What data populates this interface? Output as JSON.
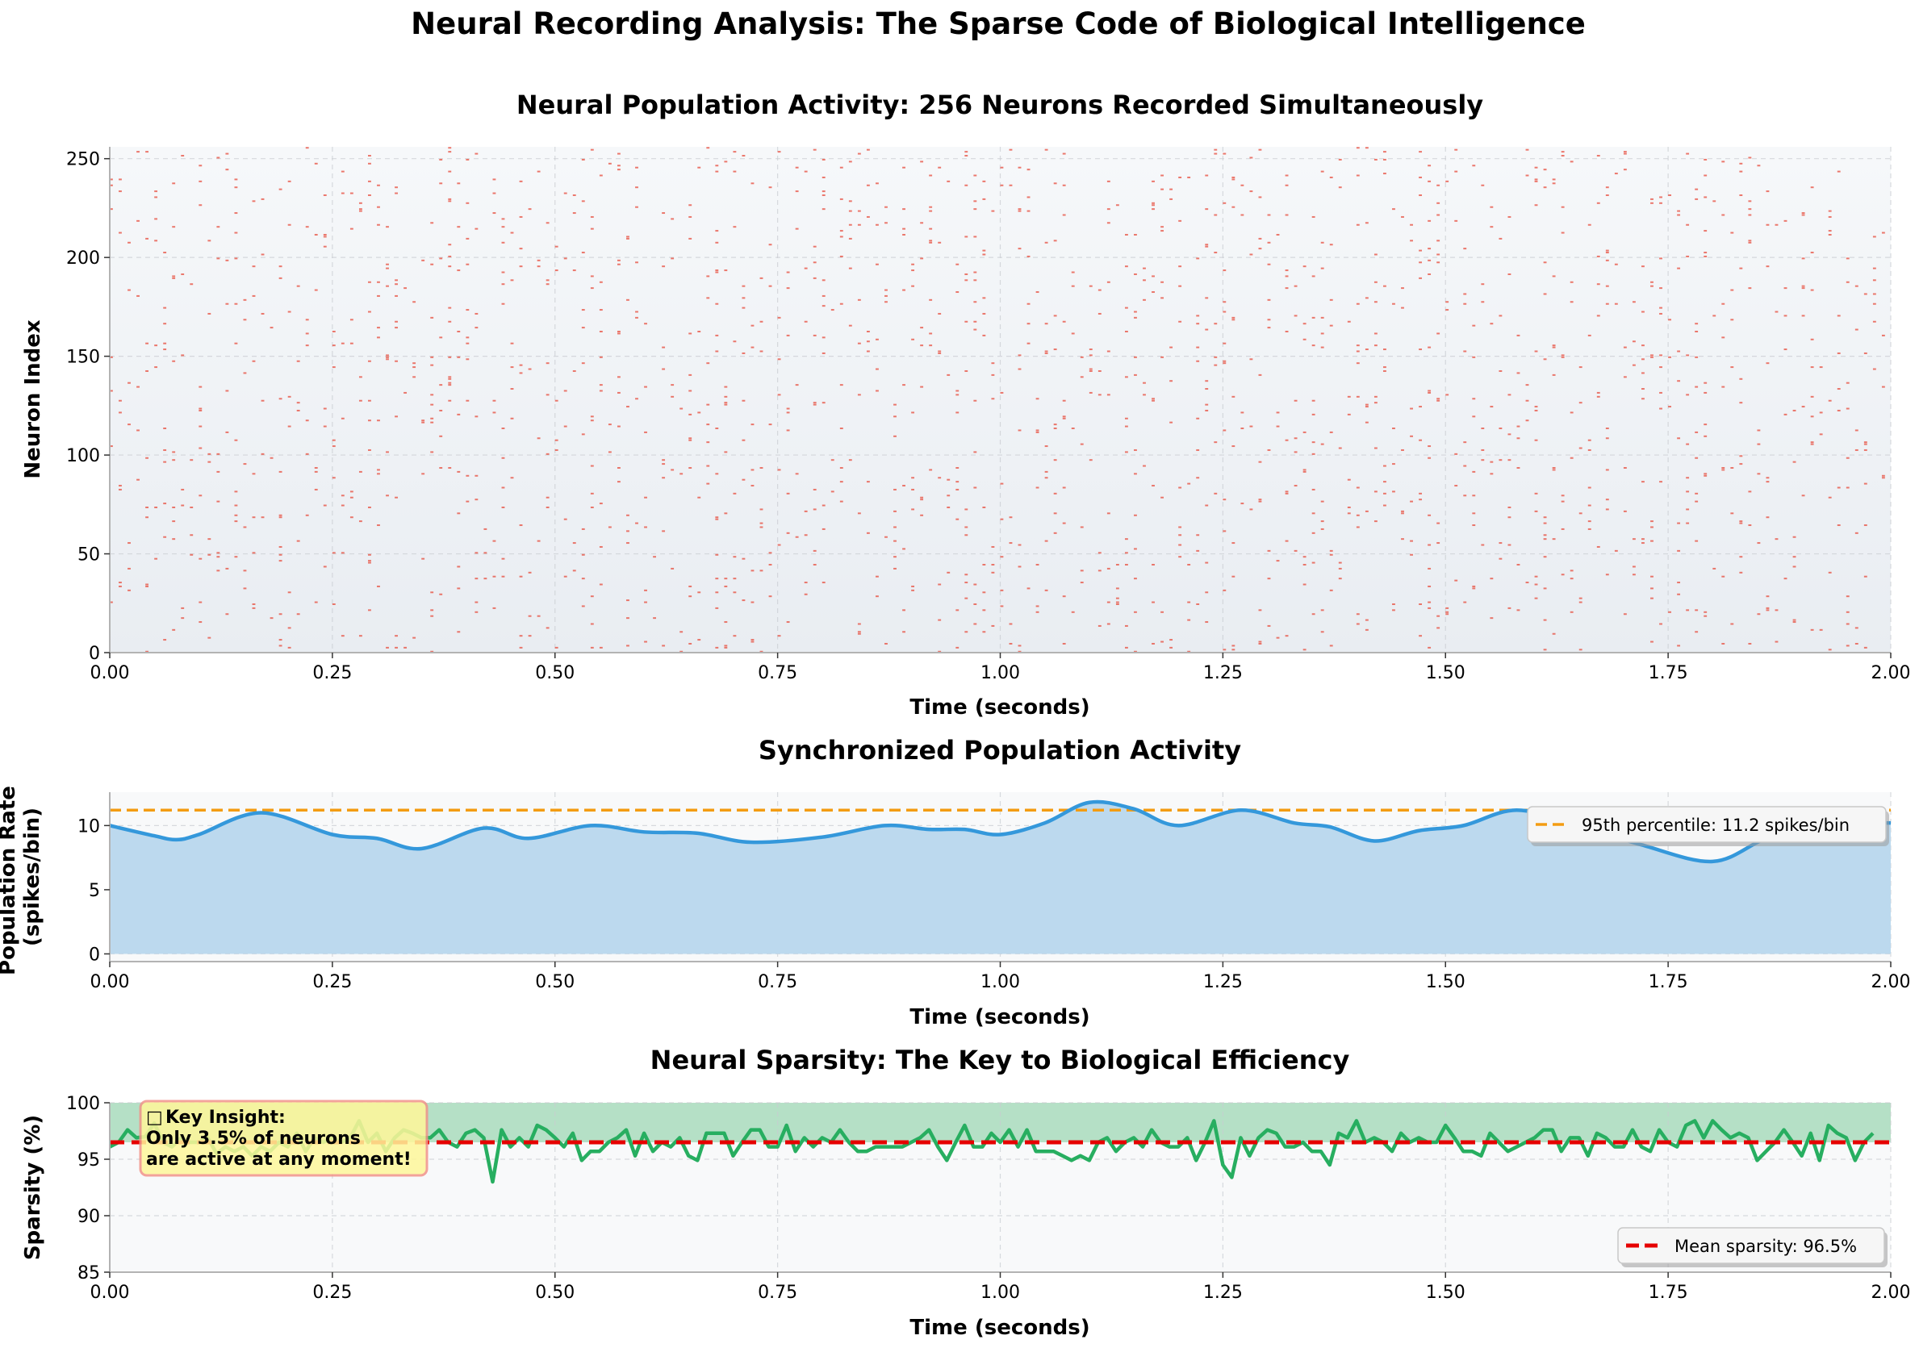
{
  "figure_title": "Neural Recording Analysis: The Sparse Code of Biological Intelligence",
  "colors": {
    "spike": "#e74c3c",
    "rate_line": "#3498db",
    "rate_fill": "#bcd9ee",
    "threshold": "#f39c12",
    "sparsity_line": "#27ae60",
    "sparsity_band": "#b5e0c6",
    "mean_line": "#e60000",
    "annotation_fill": "#fff79a",
    "annotation_border": "#f1948a"
  },
  "chart_data": [
    {
      "type": "scatter",
      "title": "Neural Population Activity: 256 Neurons Recorded Simultaneously",
      "xlabel": "Time (seconds)",
      "ylabel": "Neuron Index",
      "xlim": [
        0,
        2.0
      ],
      "ylim": [
        0,
        256
      ],
      "xticks": [
        "0.00",
        "0.25",
        "0.50",
        "0.75",
        "1.00",
        "1.25",
        "1.50",
        "1.75",
        "2.00"
      ],
      "yticks": [
        "0",
        "50",
        "100",
        "150",
        "200",
        "250"
      ],
      "grid": true,
      "neurons": 256,
      "duration_s": 2.0,
      "spike_probability_per_bin": 0.035,
      "bins": 200
    },
    {
      "type": "area",
      "title": "Synchronized Population Activity",
      "xlabel": "Time (seconds)",
      "ylabel": "Population Rate\n(spikes/bin)",
      "xlim": [
        0,
        2.0
      ],
      "ylim": [
        -0.6,
        12.6
      ],
      "xticks": [
        "0.00",
        "0.25",
        "0.50",
        "0.75",
        "1.00",
        "1.25",
        "1.50",
        "1.75",
        "2.00"
      ],
      "yticks": [
        "0",
        "5",
        "10"
      ],
      "grid": true,
      "x": [
        0,
        0.05,
        0.075,
        0.1,
        0.17,
        0.25,
        0.3,
        0.35,
        0.42,
        0.47,
        0.54,
        0.6,
        0.66,
        0.72,
        0.8,
        0.87,
        0.92,
        0.96,
        1.0,
        1.05,
        1.1,
        1.15,
        1.2,
        1.27,
        1.33,
        1.37,
        1.42,
        1.47,
        1.52,
        1.58,
        1.65,
        1.72,
        1.8,
        1.86,
        1.92,
        2.0
      ],
      "y": [
        10.0,
        9.2,
        8.9,
        9.3,
        11.0,
        9.3,
        9.0,
        8.2,
        9.8,
        9.0,
        10.0,
        9.5,
        9.4,
        8.7,
        9.1,
        10.0,
        9.7,
        9.7,
        9.3,
        10.2,
        11.8,
        11.3,
        10.0,
        11.2,
        10.2,
        9.9,
        8.8,
        9.6,
        10.0,
        11.2,
        10.0,
        8.5,
        7.2,
        9.0,
        10.2,
        10.2
      ],
      "threshold": 11.2,
      "legend": "95th percentile: 11.2 spikes/bin",
      "legend_position": "upper right"
    },
    {
      "type": "line",
      "title": "Neural Sparsity: The Key to Biological Efficiency",
      "xlabel": "Time (seconds)",
      "ylabel": "Sparsity (%)",
      "xlim": [
        0,
        2.0
      ],
      "ylim": [
        85,
        100
      ],
      "xticks": [
        "0.00",
        "0.25",
        "0.50",
        "0.75",
        "1.00",
        "1.25",
        "1.50",
        "1.75",
        "2.00"
      ],
      "yticks": [
        "85",
        "90",
        "95",
        "100"
      ],
      "grid": true,
      "x_start": 0,
      "x_step": 0.01,
      "y": [
        96.1,
        96.5,
        97.6,
        96.9,
        97.0,
        98.2,
        96.5,
        96.1,
        96.9,
        96.5,
        96.5,
        96.9,
        95.5,
        96.1,
        95.7,
        96.1,
        95.3,
        96.1,
        95.7,
        96.5,
        96.1,
        97.3,
        95.7,
        96.9,
        96.5,
        96.9,
        96.5,
        96.9,
        98.4,
        96.5,
        97.3,
        95.7,
        96.9,
        97.6,
        97.3,
        96.9,
        96.9,
        97.6,
        96.5,
        96.1,
        97.3,
        97.6,
        96.9,
        93.0,
        97.6,
        96.1,
        96.9,
        96.1,
        98.0,
        97.6,
        96.9,
        96.1,
        97.3,
        94.9,
        95.7,
        95.7,
        96.5,
        96.9,
        97.6,
        95.3,
        97.3,
        95.7,
        96.5,
        96.1,
        96.9,
        95.3,
        94.9,
        97.3,
        97.3,
        97.3,
        95.3,
        96.5,
        97.6,
        97.6,
        96.1,
        96.1,
        98.0,
        95.7,
        96.9,
        96.1,
        96.9,
        96.5,
        97.6,
        96.5,
        95.7,
        95.7,
        96.1,
        96.1,
        96.1,
        96.1,
        96.5,
        96.9,
        97.6,
        96.1,
        94.9,
        96.5,
        98.0,
        96.1,
        96.1,
        97.3,
        96.5,
        97.6,
        96.1,
        97.6,
        95.7,
        95.7,
        95.7,
        95.3,
        94.9,
        95.3,
        94.9,
        96.5,
        96.9,
        95.7,
        96.5,
        96.9,
        96.1,
        97.6,
        96.5,
        96.1,
        96.1,
        96.9,
        94.9,
        96.5,
        98.4,
        94.5,
        93.4,
        96.9,
        95.3,
        96.9,
        97.6,
        97.3,
        96.1,
        96.1,
        96.5,
        95.7,
        95.7,
        94.5,
        97.3,
        96.9,
        98.4,
        96.5,
        96.9,
        96.5,
        95.7,
        97.3,
        96.5,
        96.9,
        96.5,
        96.5,
        98.0,
        96.9,
        95.7,
        95.7,
        95.3,
        97.3,
        96.5,
        95.7,
        96.1,
        96.5,
        96.9,
        97.6,
        97.6,
        95.7,
        96.9,
        96.9,
        95.3,
        97.3,
        96.9,
        96.1,
        96.1,
        97.6,
        96.1,
        95.7,
        97.6,
        96.5,
        96.1,
        98.0,
        98.4,
        96.9,
        98.4,
        97.6,
        96.9,
        97.3,
        96.9,
        94.9,
        95.7,
        96.5,
        97.6,
        96.5,
        95.3,
        97.3,
        94.9,
        98.0,
        97.3,
        96.9,
        94.9,
        96.5,
        97.3
      ],
      "mean": 96.5,
      "band": [
        96.5,
        100
      ],
      "legend": "Mean sparsity: 96.5%",
      "legend_position": "lower right",
      "annotation": {
        "icon": "□",
        "line1": "Key Insight:",
        "line2": "Only 3.5% of neurons",
        "line3": "are active at any moment!"
      }
    }
  ]
}
